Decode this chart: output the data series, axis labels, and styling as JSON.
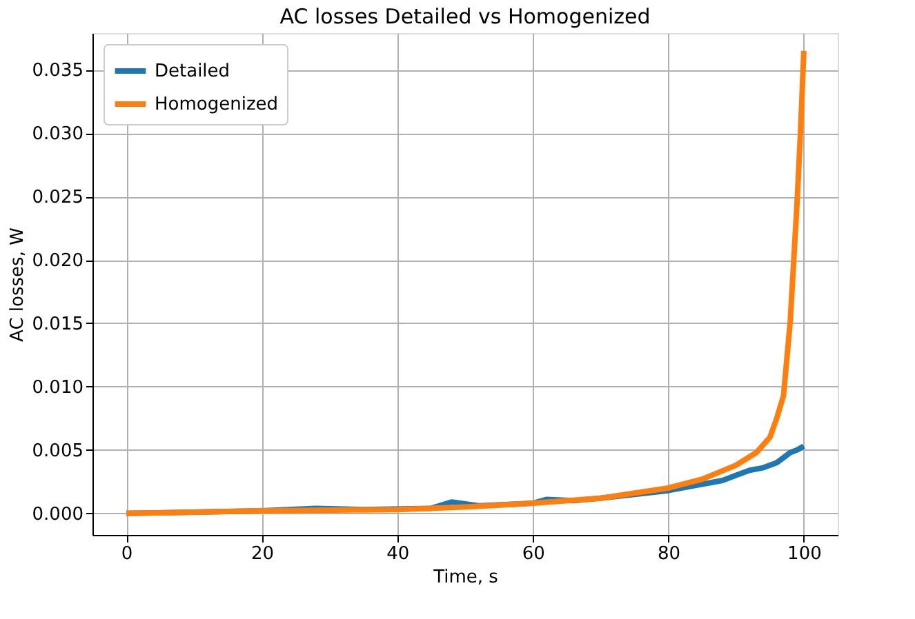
{
  "chart_data": {
    "type": "line",
    "title": "AC losses Detailed vs Homogenized",
    "xlabel": "Time, s",
    "ylabel": "AC losses, W",
    "xlim": [
      -5,
      105
    ],
    "ylim": [
      -0.0017,
      0.0379
    ],
    "xticks": [
      0,
      20,
      40,
      60,
      80,
      100
    ],
    "yticks": [
      {
        "value": 0,
        "label": "0.000"
      },
      {
        "value": 0.005,
        "label": "0.005"
      },
      {
        "value": 0.01,
        "label": "0.010"
      },
      {
        "value": 0.015,
        "label": "0.015"
      },
      {
        "value": 0.02,
        "label": "0.020"
      },
      {
        "value": 0.025,
        "label": "0.025"
      },
      {
        "value": 0.03,
        "label": "0.030"
      },
      {
        "value": 0.035,
        "label": "0.035"
      }
    ],
    "grid": true,
    "legend": "top left",
    "line_style": "solid",
    "marker": "none",
    "series": [
      {
        "name": "Detailed",
        "color": "#1f77b4",
        "x": [
          0,
          10,
          20,
          28,
          35,
          45,
          48,
          52,
          60,
          62,
          66,
          70,
          80,
          85,
          88,
          90,
          92,
          94,
          96,
          98,
          99,
          100
        ],
        "values": [
          0,
          0.0001,
          0.0002,
          0.0004,
          0.0003,
          0.0004,
          0.0009,
          0.0006,
          0.0008,
          0.0011,
          0.001,
          0.0012,
          0.0018,
          0.0023,
          0.0026,
          0.003,
          0.0034,
          0.0036,
          0.004,
          0.0048,
          0.005,
          0.0053
        ]
      },
      {
        "name": "Homogenized",
        "color": "#ff7f0e",
        "x": [
          0,
          20,
          40,
          50,
          60,
          70,
          80,
          85,
          90,
          93,
          95,
          96,
          97,
          98,
          99,
          99.5,
          100
        ],
        "values": [
          0,
          0.0002,
          0.0003,
          0.0005,
          0.0008,
          0.0012,
          0.002,
          0.0027,
          0.0038,
          0.0048,
          0.006,
          0.0075,
          0.0093,
          0.0152,
          0.0245,
          0.03,
          0.0365
        ]
      }
    ]
  }
}
